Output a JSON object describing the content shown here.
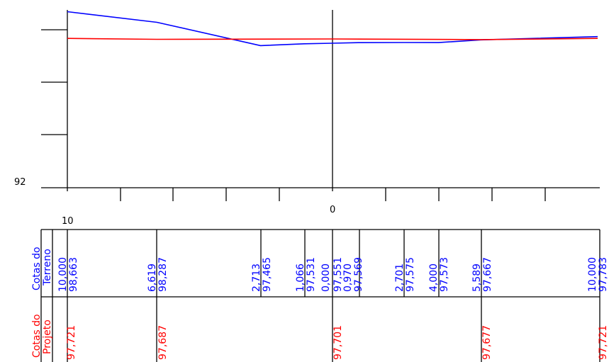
{
  "colors": {
    "terrain": "#0000ff",
    "project": "#ff0000",
    "axis": "#000000"
  },
  "axis": {
    "elevation_label": "92",
    "station_left_label": "10",
    "station_center_label": "0"
  },
  "table": {
    "terrain_row_line1": "Cotas do",
    "terrain_row_line2": "Terreno",
    "project_row_line1": "Cotas do",
    "project_row_line2": "Projeto",
    "terrain_columns": [
      {
        "offset": "10,000",
        "elevation": "98,663"
      },
      {
        "offset": "6,619",
        "elevation": "98,287"
      },
      {
        "offset": "2,713",
        "elevation": "97,465"
      },
      {
        "offset": "1,066",
        "elevation": "97,531"
      },
      {
        "offset": "0,000",
        "elevation": "97,551"
      },
      {
        "offset": "0,970",
        "elevation": "97,569"
      },
      {
        "offset": "2,701",
        "elevation": "97,575"
      },
      {
        "offset": "4,000",
        "elevation": "97,573"
      },
      {
        "offset": "5,589",
        "elevation": "97,667"
      },
      {
        "offset": "10,000",
        "elevation": "97,783"
      }
    ],
    "project_elevations": [
      "97,721",
      "97,687",
      "97,701",
      "97,677",
      "97,721"
    ]
  },
  "chart_data": {
    "type": "line",
    "ylabel_tick": "92",
    "series": [
      {
        "points": [
          {
            "offset": -10.0,
            "elevation": 98.663
          },
          {
            "offset": -6.619,
            "elevation": 98.287
          },
          {
            "offset": -2.713,
            "elevation": 97.465
          },
          {
            "offset": -1.066,
            "elevation": 97.531
          },
          {
            "offset": 0.0,
            "elevation": 97.551
          },
          {
            "offset": 0.97,
            "elevation": 97.569
          },
          {
            "offset": 2.701,
            "elevation": 97.575
          },
          {
            "offset": 4.0,
            "elevation": 97.573
          },
          {
            "offset": 5.589,
            "elevation": 97.667
          },
          {
            "offset": 10.0,
            "elevation": 97.783
          }
        ]
      },
      {
        "points": [
          {
            "offset": -10.0,
            "elevation": 97.721
          },
          {
            "offset": -6.619,
            "elevation": 97.687
          },
          {
            "offset": 0.0,
            "elevation": 97.701
          },
          {
            "offset": 5.589,
            "elevation": 97.677
          },
          {
            "offset": 10.0,
            "elevation": 97.721
          }
        ]
      }
    ]
  }
}
